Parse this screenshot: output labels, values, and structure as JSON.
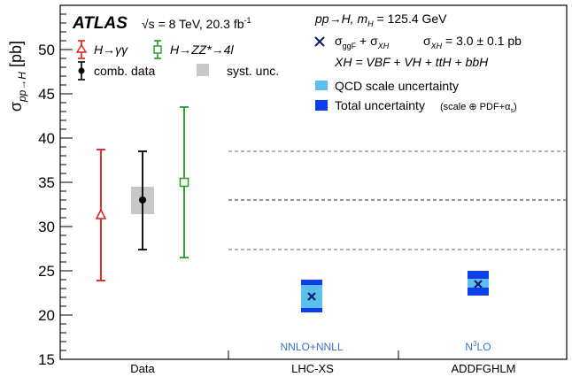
{
  "chart_data": {
    "type": "scatter",
    "ylabel": "σ_pp→H [pb]",
    "ylim": [
      15,
      55
    ],
    "yticks": [
      15,
      20,
      25,
      30,
      35,
      40,
      45,
      50
    ],
    "categories": [
      "Data",
      "LHC-XS",
      "ADDFGHLM"
    ],
    "category_notes": [
      "",
      "NNLO+NNLL",
      "N3LO"
    ],
    "reference_lines": {
      "central": 33.0,
      "total_low": 27.4,
      "total_high": 38.5
    },
    "syst_unc_band": {
      "low": 31.4,
      "high": 34.5
    },
    "measurements": [
      {
        "name": "H→γγ",
        "value": 31.3,
        "low": 23.9,
        "high": 38.7,
        "color": "#e41a1c",
        "marker": "open-triangle"
      },
      {
        "name": "comb. data",
        "value": 33.0,
        "low": 27.4,
        "high": 38.5,
        "color": "#000000",
        "marker": "filled-circle"
      },
      {
        "name": "H→ZZ*→4l",
        "value": 35.0,
        "low": 26.5,
        "high": 43.5,
        "color": "#1f9d1f",
        "marker": "open-square"
      }
    ],
    "predictions": [
      {
        "category": "LHC-XS",
        "value": 22.1,
        "qcd_low": 20.8,
        "qcd_high": 23.4,
        "total_low": 20.3,
        "total_high": 24.0
      },
      {
        "category": "ADDFGHLM",
        "value": 23.5,
        "qcd_low": 23.1,
        "qcd_high": 24.1,
        "total_low": 22.2,
        "total_high": 25.0
      }
    ]
  },
  "text": {
    "experiment": "ATLAS",
    "energy_lumi": "√s = 8 TeV,  20.3 fb",
    "lumi_sup": "-1",
    "process": "pp→H,  m",
    "mass_sub": "H",
    "mass_value": " = 125.4 GeV",
    "legend_gg": "H→γγ",
    "legend_zz": "H→ZZ*→4l",
    "legend_comb": "comb. data",
    "legend_syst": "syst. unc.",
    "sigma_sum": "σ",
    "sigma_sum_sub1": "ggF",
    "sigma_sum_mid": " + σ",
    "sigma_sum_sub2": "XH",
    "sigma_xh_label": "σ",
    "sigma_xh_sub": "XH",
    "sigma_xh_value": " = 3.0 ± 0.1 pb",
    "xh_def": "XH  =  VBF + VH + ttH + bbH",
    "legend_qcd": "QCD scale uncertainty",
    "legend_total": "Total uncertainty",
    "legend_total_note": "(scale ⊕ PDF+α",
    "legend_total_note_sub": "s",
    "legend_total_note_end": ")"
  },
  "colors": {
    "qcd_band": "#5bc0eb",
    "total_band": "#0d3fe8",
    "syst_band": "#c8c8c8",
    "note_text": "#3f6fc6",
    "grid_dash": "#555555"
  }
}
